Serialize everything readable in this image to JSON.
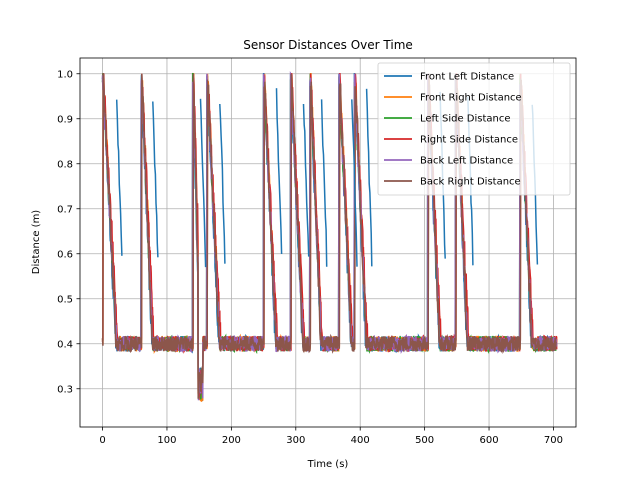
{
  "chart_data": {
    "type": "line",
    "title": "Sensor Distances Over Time",
    "xlabel": "Time (s)",
    "ylabel": "Distance (m)",
    "xlim": [
      -35,
      735
    ],
    "ylim": [
      0.215,
      1.035
    ],
    "xticks": [
      0,
      100,
      200,
      300,
      400,
      500,
      600,
      700
    ],
    "yticks": [
      0.3,
      0.4,
      0.5,
      0.6,
      0.7,
      0.8,
      0.9,
      1.0
    ],
    "grid": true,
    "legend_position": "upper right",
    "baseline": 0.4,
    "drops": [
      {
        "start": 0,
        "end": 20
      },
      {
        "start": 60,
        "end": 76
      },
      {
        "start": 140,
        "end": 150
      },
      {
        "start": 162,
        "end": 180
      },
      {
        "start": 250,
        "end": 268
      },
      {
        "start": 292,
        "end": 310
      },
      {
        "start": 322,
        "end": 338
      },
      {
        "start": 367,
        "end": 385
      },
      {
        "start": 391,
        "end": 408
      },
      {
        "start": 505,
        "end": 522
      },
      {
        "start": 548,
        "end": 565
      },
      {
        "start": 648,
        "end": 665
      }
    ],
    "series": [
      {
        "name": "Front Left Distance",
        "color": "#1f77b4"
      },
      {
        "name": "Front Right Distance",
        "color": "#ff7f0e"
      },
      {
        "name": "Left Side Distance",
        "color": "#2ca02c"
      },
      {
        "name": "Right Side Distance",
        "color": "#d62728"
      },
      {
        "name": "Back Left Distance",
        "color": "#9467bd"
      },
      {
        "name": "Back Right Distance",
        "color": "#8c564b"
      }
    ]
  }
}
